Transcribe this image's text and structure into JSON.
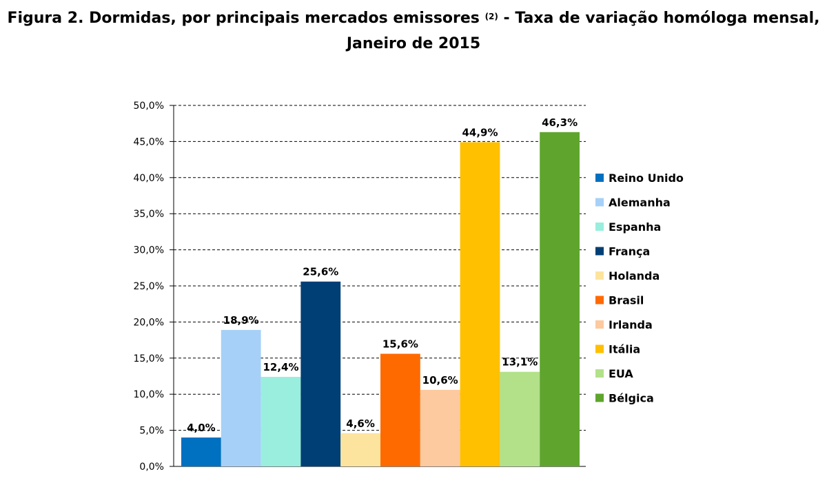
{
  "title": {
    "line1_before": "Figura 2. Dormidas, por principais mercados emissores ",
    "line1_sup": "(2)",
    "line1_after": " - Taxa de variação homóloga mensal,",
    "line2": "Janeiro de 2015"
  },
  "chart_data": {
    "type": "bar",
    "title": "",
    "xlabel": "",
    "ylabel": "",
    "ylim": [
      0,
      50
    ],
    "yticks": [
      "0,0%",
      "5,0%",
      "10,0%",
      "15,0%",
      "20,0%",
      "25,0%",
      "30,0%",
      "35,0%",
      "40,0%",
      "45,0%",
      "50,0%"
    ],
    "grid": "horizontal dashed",
    "legend_position": "right",
    "categories": [
      "Reino Unido",
      "Alemanha",
      "Espanha",
      "França",
      "Holanda",
      "Brasil",
      "Irlanda",
      "Itália",
      "EUA",
      "Bélgica"
    ],
    "values": [
      4.0,
      18.9,
      12.4,
      25.6,
      4.6,
      15.6,
      10.6,
      44.9,
      13.1,
      46.3
    ],
    "data_labels": [
      "4,0%",
      "18,9%",
      "12,4%",
      "25,6%",
      "4,6%",
      "15,6%",
      "10,6%",
      "44,9%",
      "13,1%",
      "46,3%"
    ],
    "colors": [
      "#0070c0",
      "#a6d0f7",
      "#99eedd",
      "#003f75",
      "#fde49e",
      "#ff6a00",
      "#fdc99e",
      "#ffc000",
      "#b2e18a",
      "#5fa52d"
    ]
  }
}
